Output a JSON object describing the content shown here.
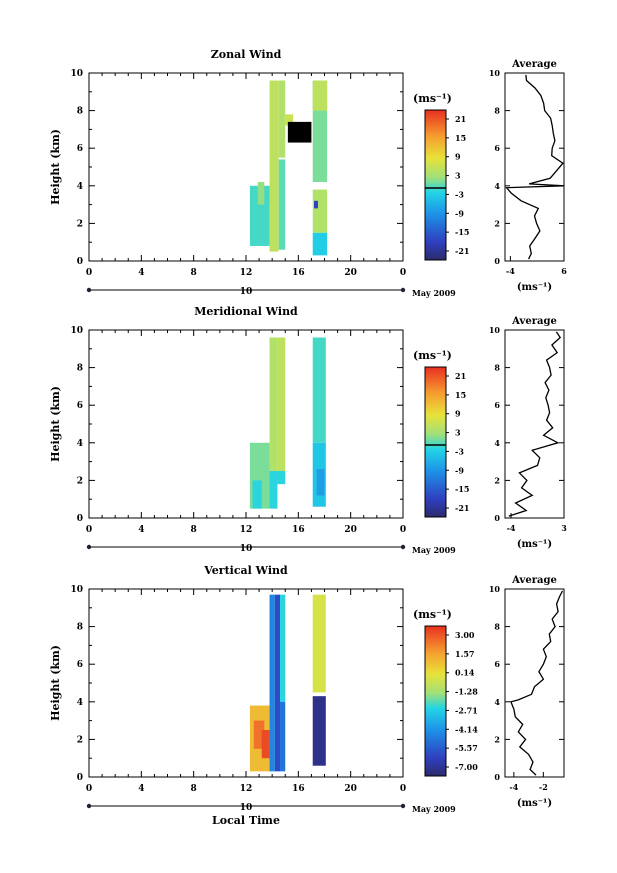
{
  "chart_data": [
    {
      "type": "heatmap",
      "title": "Zonal Wind",
      "ylabel": "Height (km)",
      "xlabel": "",
      "xlim": [
        0,
        24
      ],
      "ylim": [
        0,
        10
      ],
      "x_ticks": [
        "0",
        "4",
        "8",
        "12",
        "16",
        "20",
        "0"
      ],
      "y_ticks": [
        "0",
        "2",
        "4",
        "6",
        "8",
        "10"
      ],
      "date_axis": {
        "day": "10",
        "month_year": "May 2009"
      },
      "colorbar": {
        "unit": "(ms⁻¹)",
        "ticks": [
          "21",
          "15",
          "9",
          "3",
          "-3",
          "-9",
          "-15",
          "-21"
        ],
        "min": -24,
        "max": 24
      },
      "cells": [
        {
          "x0": 12.3,
          "x1": 13.8,
          "y0": 0.8,
          "y1": 4.0,
          "value": -1
        },
        {
          "x0": 12.9,
          "x1": 13.4,
          "y0": 3.0,
          "y1": 4.2,
          "value": 2
        },
        {
          "x0": 13.8,
          "x1": 14.5,
          "y0": 0.5,
          "y1": 9.6,
          "value": 5
        },
        {
          "x0": 14.5,
          "x1": 15.0,
          "y0": 5.5,
          "y1": 9.6,
          "value": 4
        },
        {
          "x0": 14.5,
          "x1": 15.0,
          "y0": 0.6,
          "y1": 5.4,
          "value": 0
        },
        {
          "x0": 15.0,
          "x1": 15.6,
          "y0": 7.2,
          "y1": 7.8,
          "value": 6
        },
        {
          "x0": 17.1,
          "x1": 18.2,
          "y0": 4.2,
          "y1": 9.6,
          "value": 1
        },
        {
          "x0": 17.1,
          "x1": 18.2,
          "y0": 8.0,
          "y1": 9.6,
          "value": 5
        },
        {
          "x0": 17.1,
          "x1": 18.2,
          "y0": 1.5,
          "y1": 3.8,
          "value": 4
        },
        {
          "x0": 17.1,
          "x1": 18.2,
          "y0": 0.3,
          "y1": 1.5,
          "value": -3
        },
        {
          "x0": 17.2,
          "x1": 17.5,
          "y0": 2.8,
          "y1": 3.2,
          "value": -18
        }
      ],
      "blackout": [
        {
          "x0": 15.2,
          "x1": 17.0,
          "y0": 6.3,
          "y1": 7.4
        }
      ],
      "average_panel": {
        "title": "Average",
        "xlabel": "(ms⁻¹)",
        "xlim": [
          -5,
          6
        ],
        "ylim": [
          0,
          10
        ],
        "x_ticks": [
          -4,
          6
        ],
        "y_ticks": [
          0,
          2,
          4,
          6,
          8,
          10
        ],
        "profile": {
          "heights": [
            0.1,
            0.4,
            0.8,
            1.2,
            1.6,
            2.0,
            2.4,
            2.8,
            3.2,
            3.6,
            3.9,
            4.0,
            4.1,
            4.4,
            4.8,
            5.2,
            5.6,
            6.0,
            6.4,
            6.8,
            7.2,
            7.6,
            8.0,
            8.4,
            8.8,
            9.2,
            9.6,
            9.9
          ],
          "values": [
            -0.6,
            -0.1,
            -0.4,
            0.6,
            1.5,
            0.9,
            0.5,
            1.2,
            -2.0,
            -3.8,
            -4.7,
            6.0,
            -0.5,
            3.4,
            4.6,
            5.8,
            3.7,
            3.8,
            4.3,
            4.0,
            3.8,
            3.5,
            2.4,
            2.2,
            1.7,
            0.6,
            -1.0,
            -1.1
          ]
        }
      }
    },
    {
      "type": "heatmap",
      "title": "Meridional Wind",
      "ylabel": "Height (km)",
      "xlabel": "",
      "xlim": [
        0,
        24
      ],
      "ylim": [
        0,
        10
      ],
      "x_ticks": [
        "0",
        "4",
        "8",
        "12",
        "16",
        "20",
        "0"
      ],
      "y_ticks": [
        "0",
        "2",
        "4",
        "6",
        "8",
        "10"
      ],
      "date_axis": {
        "day": "10",
        "month_year": "May 2009"
      },
      "colorbar": {
        "unit": "(ms⁻¹)",
        "ticks": [
          "21",
          "15",
          "9",
          "3",
          "-3",
          "-9",
          "-15",
          "-21"
        ],
        "min": -24,
        "max": 24
      },
      "cells": [
        {
          "x0": 12.3,
          "x1": 13.8,
          "y0": 0.5,
          "y1": 4.0,
          "value": 1
        },
        {
          "x0": 12.5,
          "x1": 13.2,
          "y0": 0.5,
          "y1": 2.0,
          "value": -2
        },
        {
          "x0": 13.8,
          "x1": 14.4,
          "y0": 0.5,
          "y1": 9.6,
          "value": 4
        },
        {
          "x0": 13.8,
          "x1": 14.4,
          "y0": 0.5,
          "y1": 2.5,
          "value": -2
        },
        {
          "x0": 14.4,
          "x1": 15.0,
          "y0": 2.5,
          "y1": 9.6,
          "value": 5
        },
        {
          "x0": 14.4,
          "x1": 15.0,
          "y0": 1.8,
          "y1": 2.5,
          "value": -2
        },
        {
          "x0": 17.1,
          "x1": 18.1,
          "y0": 4.0,
          "y1": 9.6,
          "value": -1
        },
        {
          "x0": 17.1,
          "x1": 18.1,
          "y0": 0.6,
          "y1": 4.0,
          "value": -4
        },
        {
          "x0": 17.4,
          "x1": 18.0,
          "y0": 1.2,
          "y1": 2.6,
          "value": -8
        }
      ],
      "blackout": [],
      "average_panel": {
        "title": "Average",
        "xlabel": "(ms⁻¹)",
        "xlim": [
          -4.8,
          3
        ],
        "ylim": [
          0,
          10
        ],
        "x_ticks": [
          -4,
          3
        ],
        "y_ticks": [
          0,
          2,
          4,
          6,
          8,
          10
        ],
        "profile": {
          "heights": [
            0.1,
            0.4,
            0.8,
            1.2,
            1.6,
            2.0,
            2.4,
            2.8,
            3.2,
            3.6,
            4.0,
            4.4,
            4.8,
            5.2,
            5.6,
            6.0,
            6.4,
            6.8,
            7.2,
            7.6,
            8.0,
            8.4,
            8.8,
            9.2,
            9.6,
            9.9
          ],
          "values": [
            -4.3,
            -2.0,
            -3.4,
            -1.2,
            -2.6,
            -1.9,
            -2.9,
            -0.5,
            -0.2,
            -1.2,
            2.2,
            0.3,
            1.5,
            0.7,
            1.1,
            0.9,
            0.6,
            1.0,
            0.5,
            1.3,
            1.1,
            0.7,
            2.1,
            1.4,
            2.5,
            2.0
          ]
        }
      }
    },
    {
      "type": "heatmap",
      "title": "Vertical Wind",
      "ylabel": "Height (km)",
      "xlabel": "Local Time",
      "xlim": [
        0,
        24
      ],
      "ylim": [
        0,
        10
      ],
      "x_ticks": [
        "0",
        "4",
        "8",
        "12",
        "16",
        "20",
        "0"
      ],
      "y_ticks": [
        "0",
        "2",
        "4",
        "6",
        "8",
        "10"
      ],
      "date_axis": {
        "day": "10",
        "month_year": "May 2009"
      },
      "colorbar": {
        "unit": "(ms⁻¹)",
        "ticks": [
          "3.00",
          "1.57",
          "0.14",
          "-1.28",
          "-2.71",
          "-4.14",
          "-5.57",
          "-7.00"
        ],
        "min": -7.7,
        "max": 3.7
      },
      "cells": [
        {
          "x0": 12.3,
          "x1": 13.8,
          "y0": 0.3,
          "y1": 3.8,
          "value": 1.0
        },
        {
          "x0": 12.6,
          "x1": 13.4,
          "y0": 1.5,
          "y1": 3.0,
          "value": 2.5
        },
        {
          "x0": 13.2,
          "x1": 13.8,
          "y0": 1.0,
          "y1": 2.5,
          "value": 3.2
        },
        {
          "x0": 13.8,
          "x1": 14.2,
          "y0": 0.3,
          "y1": 9.7,
          "value": -4.5
        },
        {
          "x0": 14.2,
          "x1": 14.6,
          "y0": 0.3,
          "y1": 9.7,
          "value": -6.0
        },
        {
          "x0": 14.6,
          "x1": 15.0,
          "y0": 4.0,
          "y1": 9.7,
          "value": -2.5
        },
        {
          "x0": 14.6,
          "x1": 15.0,
          "y0": 0.3,
          "y1": 4.0,
          "value": -5.0
        },
        {
          "x0": 17.1,
          "x1": 18.1,
          "y0": 4.5,
          "y1": 9.7,
          "value": -0.3
        },
        {
          "x0": 17.1,
          "x1": 18.1,
          "y0": 0.6,
          "y1": 4.3,
          "value": -7.2
        }
      ],
      "blackout": [],
      "average_panel": {
        "title": "Average",
        "xlabel": "(ms⁻¹)",
        "xlim": [
          -4.6,
          -0.6
        ],
        "ylim": [
          0,
          10
        ],
        "x_ticks": [
          -4,
          -2
        ],
        "y_ticks": [
          0,
          2,
          4,
          6,
          8,
          10
        ],
        "profile": {
          "heights": [
            0.1,
            0.4,
            0.8,
            1.2,
            1.6,
            2.0,
            2.4,
            2.8,
            3.2,
            3.6,
            4.0,
            4.1,
            4.4,
            4.8,
            5.2,
            5.6,
            6.0,
            6.4,
            6.8,
            7.2,
            7.6,
            8.0,
            8.4,
            8.8,
            9.2,
            9.6,
            9.9
          ],
          "values": [
            -2.5,
            -2.9,
            -2.7,
            -3.0,
            -3.6,
            -3.2,
            -3.7,
            -3.4,
            -3.9,
            -4.0,
            -4.2,
            -3.7,
            -2.8,
            -2.6,
            -2.0,
            -2.3,
            -2.0,
            -1.8,
            -2.0,
            -1.5,
            -1.6,
            -1.2,
            -1.4,
            -1.0,
            -1.1,
            -0.9,
            -0.7
          ]
        }
      }
    }
  ]
}
